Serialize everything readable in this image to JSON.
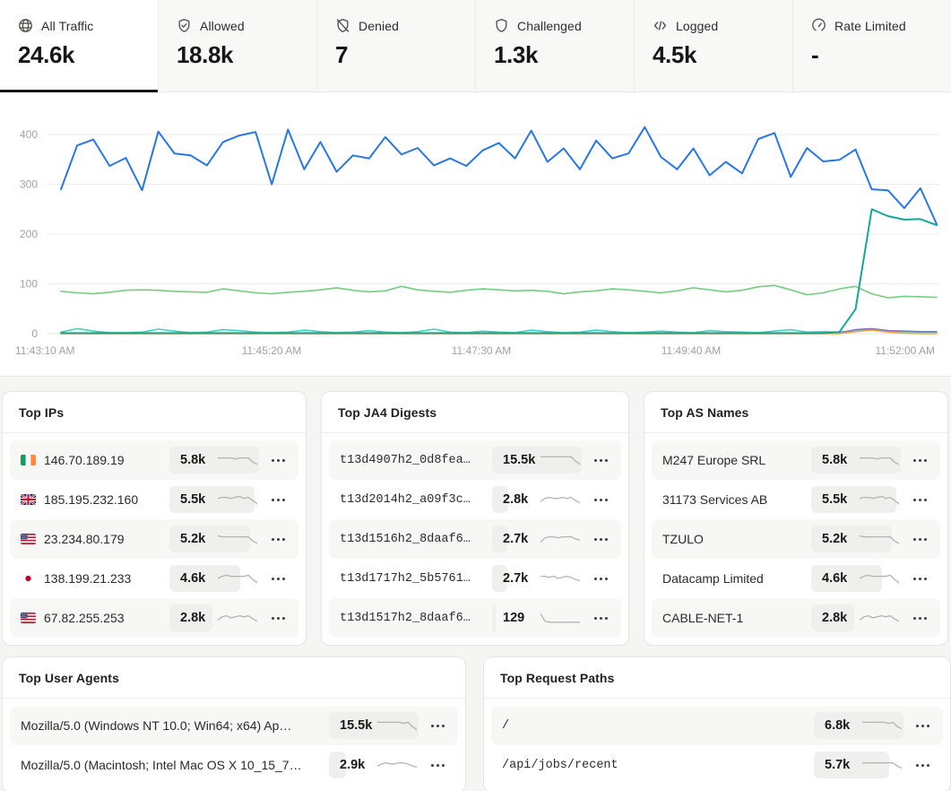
{
  "tabs": [
    {
      "label": "All Traffic",
      "value": "24.6k",
      "icon": "globe",
      "active": true
    },
    {
      "label": "Allowed",
      "value": "18.8k",
      "icon": "shield-check",
      "active": false
    },
    {
      "label": "Denied",
      "value": "7",
      "icon": "shield-off",
      "active": false
    },
    {
      "label": "Challenged",
      "value": "1.3k",
      "icon": "shield",
      "active": false
    },
    {
      "label": "Logged",
      "value": "4.5k",
      "icon": "code",
      "active": false
    },
    {
      "label": "Rate Limited",
      "value": "-",
      "icon": "gauge",
      "active": false
    }
  ],
  "chart_data": {
    "type": "line",
    "title": "",
    "xlabel": "",
    "ylabel": "",
    "x_tick_labels": [
      "11:43:10 AM",
      "11:45:20 AM",
      "11:47:30 AM",
      "11:49:40 AM",
      "11:52:00 AM"
    ],
    "x_interval_seconds": 10,
    "y_ticks": [
      0,
      100,
      200,
      300,
      400
    ],
    "ylim": [
      0,
      430
    ],
    "grid": true,
    "legend_position": "none",
    "series": [
      {
        "name": "blue",
        "color": "#2577e8",
        "values": [
          290,
          378,
          390,
          337,
          353,
          288,
          406,
          362,
          358,
          338,
          385,
          398,
          405,
          300,
          410,
          330,
          385,
          325,
          358,
          352,
          395,
          360,
          373,
          338,
          352,
          337,
          368,
          383,
          352,
          408,
          345,
          372,
          330,
          388,
          352,
          362,
          415,
          355,
          330,
          372,
          318,
          345,
          322,
          391,
          403,
          315,
          373,
          346,
          349,
          370,
          290,
          288,
          252,
          292,
          220
        ]
      },
      {
        "name": "green",
        "color": "#72ce7e",
        "values": [
          85,
          82,
          80,
          83,
          87,
          88,
          87,
          85,
          84,
          83,
          90,
          86,
          82,
          80,
          83,
          85,
          88,
          92,
          87,
          84,
          86,
          95,
          88,
          85,
          83,
          87,
          90,
          88,
          86,
          87,
          85,
          80,
          84,
          86,
          90,
          88,
          85,
          82,
          86,
          92,
          88,
          84,
          87,
          94,
          97,
          88,
          78,
          82,
          90,
          95,
          80,
          72,
          75,
          74,
          73
        ]
      },
      {
        "name": "teal-light",
        "color": "#45cfc0",
        "values": [
          3,
          10,
          5,
          2,
          2,
          3,
          9,
          5,
          2,
          3,
          8,
          6,
          3,
          2,
          3,
          7,
          4,
          2,
          3,
          6,
          3,
          2,
          4,
          9,
          3,
          2,
          5,
          3,
          2,
          7,
          4,
          2,
          3,
          7,
          4,
          2,
          3,
          5,
          3,
          2,
          6,
          4,
          3,
          2,
          5,
          8,
          3,
          4,
          3,
          5,
          9,
          6,
          4,
          3,
          3
        ]
      },
      {
        "name": "teal-dark",
        "color": "#15a79a",
        "values": [
          1,
          1,
          1,
          1,
          1,
          1,
          1,
          1,
          1,
          1,
          1,
          1,
          1,
          1,
          1,
          1,
          1,
          1,
          1,
          1,
          1,
          1,
          1,
          1,
          1,
          1,
          1,
          1,
          1,
          1,
          1,
          1,
          1,
          1,
          1,
          1,
          1,
          1,
          1,
          1,
          1,
          1,
          1,
          1,
          1,
          1,
          1,
          1,
          3,
          49,
          250,
          236,
          229,
          230,
          218
        ]
      },
      {
        "name": "purple",
        "color": "#8470d2",
        "values": [
          0,
          0,
          0,
          0,
          0,
          0,
          0,
          0,
          0,
          0,
          0,
          0,
          0,
          0,
          0,
          0,
          0,
          0,
          0,
          0,
          0,
          0,
          0,
          0,
          0,
          0,
          0,
          0,
          0,
          0,
          0,
          0,
          0,
          0,
          0,
          0,
          0,
          0,
          0,
          0,
          0,
          0,
          0,
          0,
          0,
          0,
          0,
          0,
          2,
          8,
          10,
          6,
          5,
          4,
          4
        ]
      },
      {
        "name": "orange",
        "color": "#f2a63c",
        "values": [
          0,
          0,
          0,
          0,
          0,
          0,
          0,
          0,
          0,
          0,
          0,
          0,
          0,
          0,
          0,
          0,
          0,
          0,
          0,
          0,
          0,
          0,
          0,
          0,
          0,
          0,
          0,
          0,
          0,
          0,
          0,
          0,
          0,
          0,
          0,
          0,
          0,
          0,
          0,
          0,
          0,
          0,
          0,
          0,
          0,
          0,
          0,
          0,
          0,
          4,
          7,
          3,
          1,
          0,
          0
        ]
      }
    ]
  },
  "panels": [
    {
      "title": "Top IPs",
      "mono": false,
      "rows": [
        {
          "flag": "ie",
          "name": "146.70.189.19",
          "value": "5.8k",
          "spark": [
            7,
            7,
            7,
            7,
            6,
            7,
            7,
            7,
            3,
            1
          ]
        },
        {
          "flag": "gb",
          "name": "185.195.232.160",
          "value": "5.5k",
          "spark": [
            6,
            7,
            7,
            6,
            7,
            8,
            6,
            7,
            4,
            1
          ]
        },
        {
          "flag": "us",
          "name": "23.234.80.179",
          "value": "5.2k",
          "spark": [
            8,
            7,
            7,
            7,
            7,
            7,
            7,
            7,
            3,
            1
          ]
        },
        {
          "flag": "jp",
          "name": "138.199.21.233",
          "value": "4.6k",
          "spark": [
            5,
            7,
            8,
            7,
            7,
            7,
            7,
            8,
            4,
            1
          ]
        },
        {
          "flag": "us",
          "name": "67.82.255.253",
          "value": "2.8k",
          "spark": [
            3,
            6,
            7,
            5,
            6,
            7,
            6,
            7,
            4,
            2
          ]
        }
      ]
    },
    {
      "title": "Top JA4 Digests",
      "mono": true,
      "rows": [
        {
          "name": "t13d4907h2_0d8fea…",
          "value": "15.5k",
          "spark": [
            8,
            8,
            8,
            8,
            8,
            8,
            8,
            8,
            4,
            1
          ]
        },
        {
          "name": "t13d2014h2_a09f3c…",
          "value": "2.8k",
          "spark": [
            3,
            6,
            7,
            6,
            6,
            7,
            6,
            7,
            4,
            2
          ]
        },
        {
          "name": "t13d1516h2_8daaf6…",
          "value": "2.7k",
          "spark": [
            2,
            6,
            7,
            7,
            6,
            7,
            7,
            7,
            5,
            4
          ]
        },
        {
          "name": "t13d1717h2_5b5761…",
          "value": "2.7k",
          "spark": [
            7,
            7,
            6,
            7,
            5,
            6,
            7,
            6,
            4,
            3
          ]
        },
        {
          "name": "t13d1517h2_8daaf6…",
          "value": "129",
          "spark": [
            9,
            2,
            1,
            1,
            1,
            1,
            1,
            1,
            1,
            1
          ]
        }
      ]
    },
    {
      "title": "Top AS Names",
      "mono": false,
      "rows": [
        {
          "name": "M247 Europe SRL",
          "value": "5.8k",
          "spark": [
            7,
            7,
            7,
            7,
            6,
            7,
            7,
            7,
            3,
            1
          ]
        },
        {
          "name": "31173 Services AB",
          "value": "5.5k",
          "spark": [
            6,
            7,
            7,
            6,
            7,
            8,
            6,
            7,
            4,
            1
          ]
        },
        {
          "name": "TZULO",
          "value": "5.2k",
          "spark": [
            8,
            7,
            7,
            7,
            7,
            7,
            7,
            7,
            3,
            1
          ]
        },
        {
          "name": "Datacamp Limited",
          "value": "4.6k",
          "spark": [
            5,
            7,
            8,
            7,
            7,
            7,
            7,
            8,
            4,
            1
          ]
        },
        {
          "name": "CABLE-NET-1",
          "value": "2.8k",
          "spark": [
            3,
            6,
            7,
            5,
            6,
            7,
            6,
            7,
            4,
            2
          ]
        }
      ]
    },
    {
      "title": "Top User Agents",
      "mono": false,
      "rows": [
        {
          "name": "Mozilla/5.0 (Windows NT 10.0; Win64; x64) Ap…",
          "value": "15.5k",
          "spark": [
            8,
            8,
            8,
            8,
            8,
            8,
            7,
            8,
            4,
            1
          ]
        },
        {
          "name": "Mozilla/5.0 (Macintosh; Intel Mac OS X 10_15_7…",
          "value": "2.9k",
          "spark": [
            4,
            6,
            7,
            6,
            6,
            7,
            7,
            6,
            4,
            3
          ]
        }
      ]
    },
    {
      "title": "Top Request Paths",
      "mono": true,
      "rows": [
        {
          "name": "/",
          "value": "6.8k",
          "spark": [
            8,
            8,
            8,
            8,
            8,
            8,
            7,
            8,
            4,
            2
          ]
        },
        {
          "name": "/api/jobs/recent",
          "value": "5.7k",
          "spark": [
            7,
            7,
            7,
            7,
            7,
            7,
            7,
            7,
            4,
            2
          ]
        }
      ]
    }
  ],
  "colors": {
    "axis_text": "#a3a19c",
    "gridline": "#ececea",
    "sparkline": "#b5b3af"
  }
}
